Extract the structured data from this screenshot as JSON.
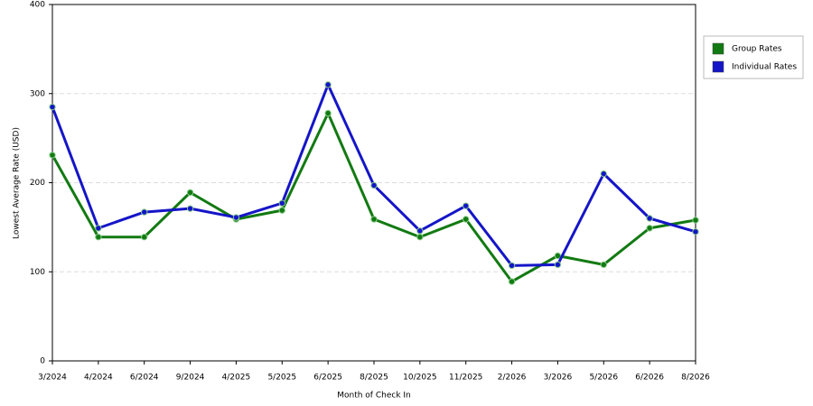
{
  "chart_data": {
    "type": "line",
    "x_label": "Month of Check In",
    "y_label": "Lowest Average Rate (USD)",
    "categories": [
      "3/2024",
      "4/2024",
      "6/2024",
      "9/2024",
      "4/2025",
      "5/2025",
      "6/2025",
      "8/2025",
      "10/2025",
      "11/2025",
      "2/2026",
      "3/2026",
      "5/2026",
      "6/2026",
      "8/2026"
    ],
    "series": [
      {
        "name": "Group Rates",
        "color": "#127a12",
        "values": [
          231,
          139,
          139,
          189,
          159,
          169,
          278,
          159,
          139,
          159,
          89,
          118,
          108,
          149,
          158
        ]
      },
      {
        "name": "Individual Rates",
        "color": "#1515c8",
        "values": [
          285,
          149,
          167,
          171,
          161,
          177,
          310,
          197,
          146,
          174,
          107,
          108,
          210,
          160,
          145
        ]
      }
    ],
    "ylim": [
      0,
      400
    ],
    "yticks": [
      0,
      100,
      200,
      300,
      400
    ],
    "grid": true,
    "legend": "right"
  }
}
